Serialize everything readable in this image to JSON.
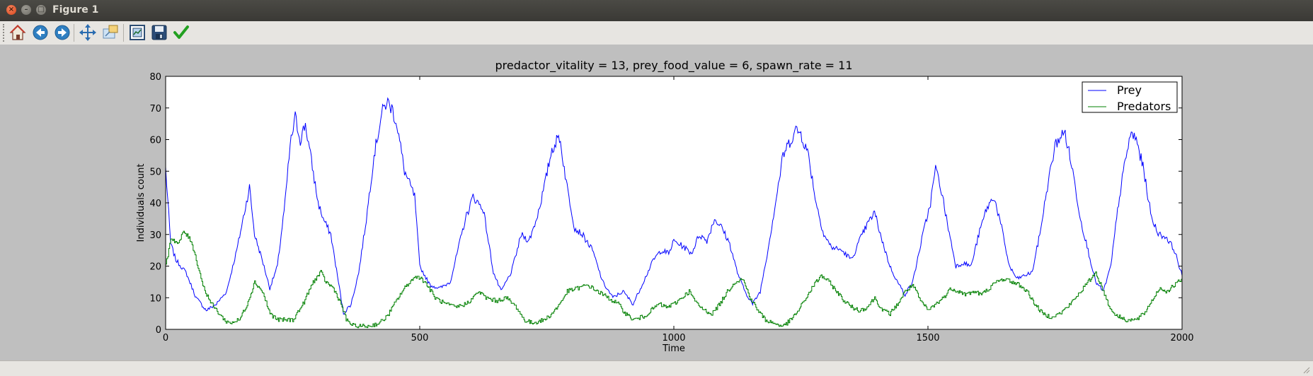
{
  "window": {
    "title": "Figure 1",
    "close_glyph": "×",
    "min_glyph": "–",
    "max_glyph": "□"
  },
  "toolbar": {
    "buttons": [
      {
        "icon": "home-icon",
        "label": "Home"
      },
      {
        "icon": "back-icon",
        "label": "Back"
      },
      {
        "icon": "forward-icon",
        "label": "Forward"
      },
      {
        "icon": "pan-icon",
        "label": "Pan"
      },
      {
        "icon": "zoom-icon",
        "label": "Zoom"
      },
      {
        "icon": "subplots-icon",
        "label": "Subplots"
      },
      {
        "icon": "save-icon",
        "label": "Save"
      },
      {
        "icon": "edit-check-icon",
        "label": "Edit"
      }
    ]
  },
  "colors": {
    "prey": "#0000ff",
    "predators": "#008000"
  },
  "chart_data": {
    "type": "line",
    "title": "predactor_vitality = 13, prey_food_value = 6, spawn_rate = 11",
    "xlabel": "Time",
    "ylabel": "Individuals count",
    "xlim": [
      0,
      2000
    ],
    "ylim": [
      0,
      80
    ],
    "xticks": [
      0,
      500,
      1000,
      1500,
      2000
    ],
    "yticks": [
      0,
      10,
      20,
      30,
      40,
      50,
      60,
      70,
      80
    ],
    "grid": false,
    "legend_position": "top-right",
    "series": [
      {
        "name": "Prey",
        "color": "#0000ff",
        "points": [
          [
            0,
            51
          ],
          [
            10,
            27
          ],
          [
            20,
            22
          ],
          [
            40,
            18
          ],
          [
            60,
            10
          ],
          [
            80,
            6
          ],
          [
            100,
            8
          ],
          [
            120,
            12
          ],
          [
            140,
            25
          ],
          [
            155,
            37
          ],
          [
            165,
            45
          ],
          [
            175,
            30
          ],
          [
            190,
            22
          ],
          [
            205,
            13
          ],
          [
            220,
            20
          ],
          [
            235,
            40
          ],
          [
            245,
            58
          ],
          [
            255,
            67
          ],
          [
            265,
            60
          ],
          [
            275,
            65
          ],
          [
            285,
            55
          ],
          [
            300,
            40
          ],
          [
            310,
            35
          ],
          [
            325,
            30
          ],
          [
            340,
            15
          ],
          [
            350,
            5
          ],
          [
            365,
            8
          ],
          [
            380,
            18
          ],
          [
            395,
            35
          ],
          [
            410,
            55
          ],
          [
            425,
            68
          ],
          [
            435,
            72
          ],
          [
            445,
            70
          ],
          [
            455,
            65
          ],
          [
            470,
            50
          ],
          [
            490,
            42
          ],
          [
            500,
            20
          ],
          [
            520,
            14
          ],
          [
            540,
            13
          ],
          [
            560,
            15
          ],
          [
            575,
            25
          ],
          [
            590,
            35
          ],
          [
            605,
            42
          ],
          [
            615,
            40
          ],
          [
            625,
            38
          ],
          [
            635,
            28
          ],
          [
            645,
            18
          ],
          [
            660,
            12
          ],
          [
            680,
            18
          ],
          [
            700,
            30
          ],
          [
            715,
            28
          ],
          [
            730,
            35
          ],
          [
            745,
            45
          ],
          [
            760,
            57
          ],
          [
            775,
            61
          ],
          [
            790,
            45
          ],
          [
            805,
            32
          ],
          [
            820,
            30
          ],
          [
            840,
            25
          ],
          [
            860,
            15
          ],
          [
            880,
            10
          ],
          [
            900,
            12
          ],
          [
            920,
            8
          ],
          [
            940,
            15
          ],
          [
            960,
            22
          ],
          [
            975,
            25
          ],
          [
            990,
            24
          ],
          [
            1000,
            28
          ],
          [
            1020,
            26
          ],
          [
            1035,
            24
          ],
          [
            1050,
            30
          ],
          [
            1065,
            28
          ],
          [
            1080,
            35
          ],
          [
            1095,
            32
          ],
          [
            1110,
            27
          ],
          [
            1125,
            18
          ],
          [
            1140,
            12
          ],
          [
            1155,
            8
          ],
          [
            1170,
            12
          ],
          [
            1185,
            25
          ],
          [
            1200,
            40
          ],
          [
            1215,
            55
          ],
          [
            1230,
            60
          ],
          [
            1240,
            63
          ],
          [
            1250,
            62
          ],
          [
            1265,
            55
          ],
          [
            1280,
            40
          ],
          [
            1295,
            30
          ],
          [
            1310,
            26
          ],
          [
            1330,
            25
          ],
          [
            1350,
            22
          ],
          [
            1365,
            28
          ],
          [
            1380,
            33
          ],
          [
            1395,
            37
          ],
          [
            1410,
            28
          ],
          [
            1425,
            20
          ],
          [
            1440,
            15
          ],
          [
            1455,
            11
          ],
          [
            1470,
            15
          ],
          [
            1490,
            30
          ],
          [
            1505,
            40
          ],
          [
            1515,
            51
          ],
          [
            1525,
            45
          ],
          [
            1540,
            32
          ],
          [
            1555,
            20
          ],
          [
            1570,
            21
          ],
          [
            1585,
            20
          ],
          [
            1600,
            30
          ],
          [
            1615,
            38
          ],
          [
            1630,
            42
          ],
          [
            1645,
            32
          ],
          [
            1660,
            20
          ],
          [
            1675,
            16
          ],
          [
            1690,
            17
          ],
          [
            1705,
            18
          ],
          [
            1720,
            30
          ],
          [
            1735,
            45
          ],
          [
            1750,
            58
          ],
          [
            1760,
            61
          ],
          [
            1770,
            62
          ],
          [
            1785,
            50
          ],
          [
            1800,
            35
          ],
          [
            1815,
            25
          ],
          [
            1830,
            15
          ],
          [
            1845,
            12
          ],
          [
            1860,
            20
          ],
          [
            1875,
            40
          ],
          [
            1890,
            55
          ],
          [
            1900,
            62
          ],
          [
            1910,
            60
          ],
          [
            1925,
            50
          ],
          [
            1940,
            35
          ],
          [
            1955,
            30
          ],
          [
            1970,
            29
          ],
          [
            1985,
            25
          ],
          [
            2000,
            17
          ]
        ]
      },
      {
        "name": "Predators",
        "color": "#008000",
        "points": [
          [
            0,
            20
          ],
          [
            10,
            29
          ],
          [
            25,
            27
          ],
          [
            35,
            31
          ],
          [
            50,
            28
          ],
          [
            60,
            22
          ],
          [
            75,
            13
          ],
          [
            90,
            8
          ],
          [
            105,
            5
          ],
          [
            115,
            3
          ],
          [
            125,
            2
          ],
          [
            145,
            3
          ],
          [
            160,
            8
          ],
          [
            175,
            15
          ],
          [
            190,
            12
          ],
          [
            205,
            5
          ],
          [
            220,
            3
          ],
          [
            250,
            3
          ],
          [
            270,
            8
          ],
          [
            290,
            15
          ],
          [
            305,
            18
          ],
          [
            315,
            15
          ],
          [
            330,
            13
          ],
          [
            345,
            8
          ],
          [
            355,
            3
          ],
          [
            370,
            1
          ],
          [
            400,
            1
          ],
          [
            420,
            2
          ],
          [
            435,
            4
          ],
          [
            450,
            8
          ],
          [
            465,
            12
          ],
          [
            480,
            15
          ],
          [
            495,
            17
          ],
          [
            510,
            15
          ],
          [
            530,
            10
          ],
          [
            550,
            8
          ],
          [
            570,
            7
          ],
          [
            590,
            8
          ],
          [
            605,
            10
          ],
          [
            615,
            12
          ],
          [
            630,
            10
          ],
          [
            650,
            9
          ],
          [
            670,
            10
          ],
          [
            690,
            7
          ],
          [
            705,
            3
          ],
          [
            720,
            2
          ],
          [
            745,
            3
          ],
          [
            760,
            5
          ],
          [
            775,
            8
          ],
          [
            790,
            12
          ],
          [
            810,
            13
          ],
          [
            830,
            14
          ],
          [
            850,
            12
          ],
          [
            870,
            10
          ],
          [
            890,
            8
          ],
          [
            905,
            5
          ],
          [
            920,
            3
          ],
          [
            940,
            4
          ],
          [
            955,
            6
          ],
          [
            970,
            8
          ],
          [
            985,
            7
          ],
          [
            1000,
            8
          ],
          [
            1015,
            10
          ],
          [
            1030,
            12
          ],
          [
            1045,
            8
          ],
          [
            1060,
            6
          ],
          [
            1075,
            5
          ],
          [
            1090,
            8
          ],
          [
            1105,
            12
          ],
          [
            1120,
            15
          ],
          [
            1135,
            16
          ],
          [
            1150,
            10
          ],
          [
            1165,
            6
          ],
          [
            1180,
            3
          ],
          [
            1195,
            2
          ],
          [
            1215,
            1
          ],
          [
            1230,
            3
          ],
          [
            1245,
            6
          ],
          [
            1260,
            10
          ],
          [
            1275,
            14
          ],
          [
            1290,
            17
          ],
          [
            1305,
            15
          ],
          [
            1320,
            12
          ],
          [
            1335,
            9
          ],
          [
            1350,
            7
          ],
          [
            1365,
            6
          ],
          [
            1380,
            7
          ],
          [
            1395,
            10
          ],
          [
            1410,
            6
          ],
          [
            1425,
            5
          ],
          [
            1440,
            8
          ],
          [
            1455,
            12
          ],
          [
            1470,
            14
          ],
          [
            1485,
            9
          ],
          [
            1500,
            6
          ],
          [
            1515,
            8
          ],
          [
            1530,
            10
          ],
          [
            1545,
            13
          ],
          [
            1560,
            12
          ],
          [
            1575,
            11
          ],
          [
            1590,
            12
          ],
          [
            1605,
            11
          ],
          [
            1620,
            13
          ],
          [
            1635,
            15
          ],
          [
            1650,
            16
          ],
          [
            1665,
            15
          ],
          [
            1680,
            14
          ],
          [
            1695,
            12
          ],
          [
            1710,
            8
          ],
          [
            1725,
            5
          ],
          [
            1740,
            4
          ],
          [
            1760,
            5
          ],
          [
            1780,
            8
          ],
          [
            1800,
            12
          ],
          [
            1815,
            15
          ],
          [
            1830,
            18
          ],
          [
            1845,
            12
          ],
          [
            1860,
            6
          ],
          [
            1875,
            4
          ],
          [
            1890,
            3
          ],
          [
            1910,
            3
          ],
          [
            1925,
            5
          ],
          [
            1940,
            9
          ],
          [
            1955,
            13
          ],
          [
            1970,
            12
          ],
          [
            1985,
            14
          ],
          [
            2000,
            16
          ]
        ]
      }
    ]
  }
}
